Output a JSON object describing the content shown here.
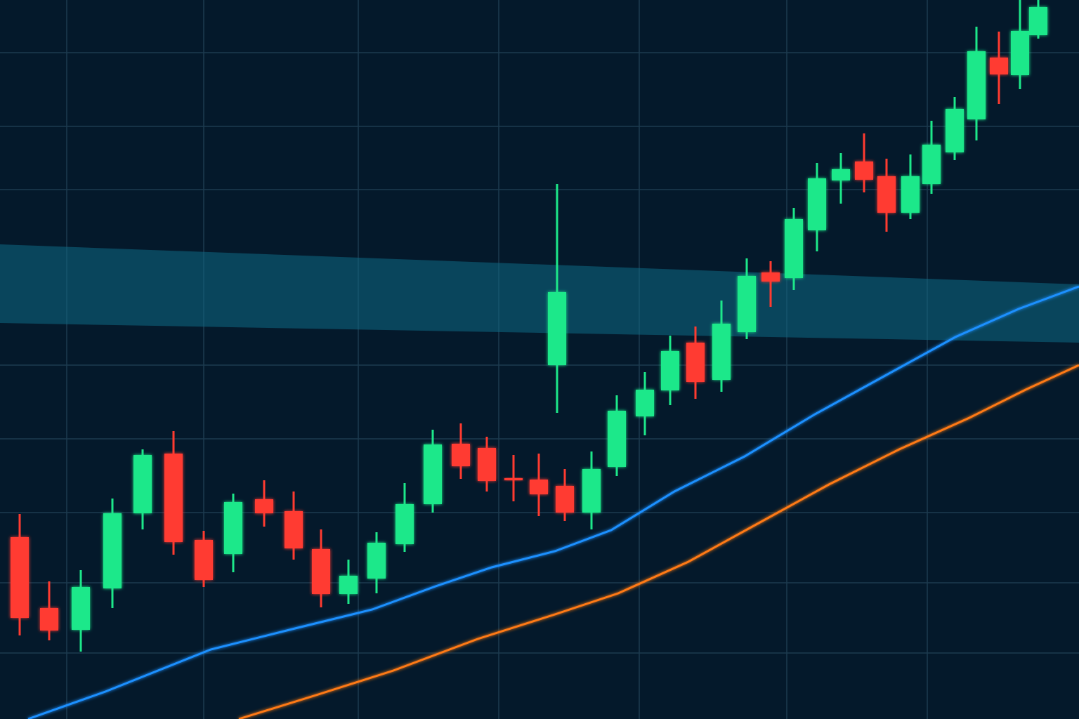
{
  "chart_data": {
    "type": "candlestick",
    "xlim": [
      0,
      1536
    ],
    "ylim": [
      0,
      1024
    ],
    "xticks": [
      95,
      290,
      510,
      710,
      910,
      1120,
      1320
    ],
    "yticks": [
      94,
      194,
      294,
      399,
      504,
      754,
      844,
      949
    ],
    "grid": true,
    "up_color": "#1de88a",
    "down_color": "#ff3b30",
    "x": [
      28,
      70,
      115,
      160,
      203,
      247,
      290,
      332,
      376,
      418,
      457,
      496,
      536,
      576,
      616,
      656,
      693,
      731,
      767,
      793,
      804,
      842,
      878,
      918,
      954,
      990,
      1027,
      1063,
      1097,
      1130,
      1163,
      1197,
      1230,
      1262,
      1296,
      1326,
      1359,
      1390,
      1422,
      1452,
      1478
    ],
    "open": [
      259,
      158,
      127,
      186,
      293,
      378,
      255,
      235,
      313,
      296,
      242,
      178,
      200,
      249,
      306,
      392,
      386,
      343,
      341,
      504,
      332,
      294,
      359,
      431,
      468,
      536,
      483,
      551,
      636,
      628,
      696,
      767,
      794,
      773,
      721,
      762,
      807,
      854,
      942,
      917,
      974
    ],
    "high": [
      292,
      196,
      212,
      314,
      384,
      410,
      268,
      321,
      340,
      324,
      270,
      227,
      266,
      336,
      412,
      421,
      402,
      376,
      378,
      762,
      356,
      381,
      461,
      494,
      546,
      559,
      596,
      656,
      652,
      728,
      792,
      806,
      834,
      798,
      804,
      852,
      886,
      986,
      979,
      1024,
      1024
    ],
    "low": [
      119,
      112,
      96,
      158,
      270,
      234,
      188,
      209,
      274,
      227,
      159,
      164,
      179,
      238,
      294,
      342,
      324,
      310,
      289,
      436,
      282,
      270,
      346,
      404,
      447,
      456,
      466,
      541,
      587,
      611,
      666,
      734,
      750,
      694,
      712,
      748,
      796,
      824,
      876,
      897,
      969
    ],
    "close": [
      144,
      126,
      188,
      293,
      376,
      252,
      198,
      309,
      293,
      243,
      178,
      204,
      251,
      306,
      391,
      360,
      339,
      341,
      320,
      608,
      294,
      356,
      439,
      469,
      524,
      480,
      563,
      631,
      623,
      712,
      770,
      783,
      768,
      721,
      773,
      818,
      869,
      951,
      918,
      980,
      1014
    ],
    "lines": [
      {
        "color": "#1e90ff",
        "x": [
          40,
          150,
          300,
          420,
          530,
          620,
          700,
          790,
          870,
          960,
          1060,
          1160,
          1260,
          1360,
          1450,
          1536
        ],
        "values": [
          0,
          39,
          99,
          129,
          156,
          189,
          216,
          239,
          269,
          324,
          374,
          434,
          489,
          544,
          584,
          616
        ]
      },
      {
        "color": "#ff7a12",
        "x": [
          340,
          450,
          560,
          680,
          790,
          880,
          980,
          1080,
          1180,
          1280,
          1380,
          1460,
          1536
        ],
        "values": [
          0,
          34,
          69,
          114,
          149,
          179,
          224,
          279,
          334,
          384,
          429,
          469,
          504
        ]
      }
    ]
  }
}
